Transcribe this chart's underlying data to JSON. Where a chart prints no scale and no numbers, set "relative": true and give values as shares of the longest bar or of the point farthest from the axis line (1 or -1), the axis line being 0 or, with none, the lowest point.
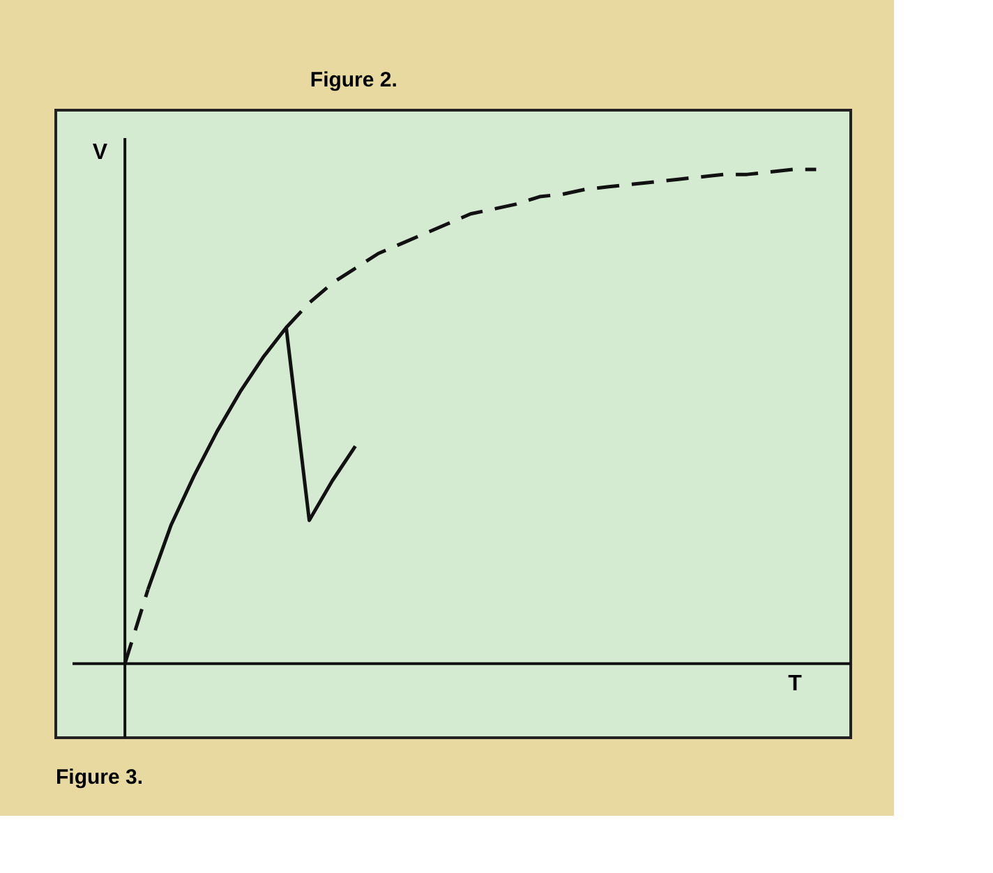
{
  "chart_data": {
    "type": "line",
    "title": "Figure 3.",
    "xlabel": "T",
    "ylabel": "V",
    "relative": true,
    "grid": false,
    "annotations": [
      "Figure 2."
    ],
    "categories": [
      null,
      null,
      null,
      null,
      null,
      null,
      null,
      null,
      null,
      null,
      null,
      null,
      null,
      null,
      null,
      null,
      null,
      null,
      null,
      null,
      null,
      null,
      null,
      null,
      null,
      null,
      null,
      null,
      null,
      null,
      null
    ],
    "series": [
      {
        "color": "#111111",
        "line_style": "solid",
        "values": [
          null,
          0.15,
          0.28,
          0.38,
          0.47,
          0.55,
          0.62,
          0.68,
          0.29,
          0.37,
          0.44,
          null,
          null,
          null,
          null,
          null,
          null,
          null,
          null,
          null,
          null,
          null,
          null,
          null,
          null,
          null,
          null,
          null,
          null,
          null,
          null
        ]
      },
      {
        "color": "#111111",
        "line_style": "dashed",
        "values": [
          0,
          0.15,
          null,
          null,
          null,
          null,
          null,
          0.68,
          0.73,
          0.77,
          0.8,
          0.83,
          0.85,
          0.87,
          0.89,
          0.91,
          0.92,
          0.93,
          0.945,
          0.95,
          0.96,
          0.965,
          0.97,
          0.975,
          0.98,
          0.985,
          0.99,
          0.99,
          0.995,
          1.0,
          1.0
        ]
      }
    ]
  }
}
